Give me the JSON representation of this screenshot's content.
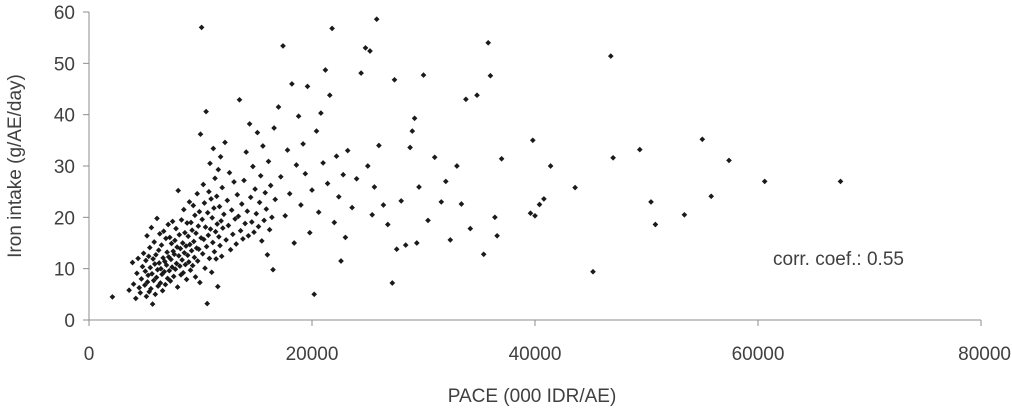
{
  "chart_data": {
    "type": "scatter",
    "title": "",
    "xlabel": "PACE (000 IDR/AE)",
    "ylabel": "Iron intake (g/AE/day)",
    "xlim": [
      0,
      80000
    ],
    "ylim": [
      0,
      60
    ],
    "x_ticks": [
      0,
      20000,
      40000,
      60000,
      80000
    ],
    "x_tick_labels": [
      "0",
      "20000",
      "40000",
      "60000",
      "80000"
    ],
    "y_ticks": [
      0,
      10,
      20,
      30,
      40,
      50,
      60
    ],
    "y_tick_labels": [
      "0",
      "10",
      "20",
      "30",
      "40",
      "50",
      "60"
    ],
    "grid": false,
    "legend": "none",
    "point_color": "#1a1a1a",
    "annotation": "corr. coef.: 0.55",
    "series": [
      {
        "points": [
          [
            2100,
            4.5
          ],
          [
            3600,
            5.8
          ],
          [
            3900,
            11.2
          ],
          [
            4000,
            7.0
          ],
          [
            4200,
            4.2
          ],
          [
            4300,
            9.1
          ],
          [
            4400,
            12.0
          ],
          [
            4500,
            6.3
          ],
          [
            4600,
            5.3
          ],
          [
            4700,
            8.0
          ],
          [
            4800,
            10.4
          ],
          [
            4900,
            13.0
          ],
          [
            5000,
            6.8
          ],
          [
            5050,
            9.5
          ],
          [
            5100,
            11.6
          ],
          [
            5150,
            4.6
          ],
          [
            5200,
            16.4
          ],
          [
            5250,
            7.4
          ],
          [
            5300,
            8.7
          ],
          [
            5350,
            12.4
          ],
          [
            5400,
            5.5
          ],
          [
            5450,
            14.1
          ],
          [
            5500,
            10.2
          ],
          [
            5550,
            6.1
          ],
          [
            5600,
            18.0
          ],
          [
            5650,
            9.0
          ],
          [
            5700,
            3.1
          ],
          [
            5750,
            11.9
          ],
          [
            5800,
            7.7
          ],
          [
            5850,
            15.2
          ],
          [
            5900,
            10.9
          ],
          [
            5950,
            5.0
          ],
          [
            6000,
            12.7
          ],
          [
            6050,
            8.3
          ],
          [
            6100,
            19.8
          ],
          [
            6150,
            9.8
          ],
          [
            6200,
            6.6
          ],
          [
            6250,
            13.6
          ],
          [
            6300,
            11.1
          ],
          [
            6350,
            16.8
          ],
          [
            6400,
            7.2
          ],
          [
            6450,
            10.0
          ],
          [
            6500,
            14.6
          ],
          [
            6550,
            8.9
          ],
          [
            6600,
            5.7
          ],
          [
            6650,
            12.1
          ],
          [
            6700,
            17.3
          ],
          [
            6750,
            9.4
          ],
          [
            6800,
            11.4
          ],
          [
            6850,
            6.9
          ],
          [
            6900,
            15.9
          ],
          [
            6950,
            10.7
          ],
          [
            7000,
            13.2
          ],
          [
            7050,
            8.1
          ],
          [
            7100,
            18.6
          ],
          [
            7150,
            12.3
          ],
          [
            7200,
            9.6
          ],
          [
            7250,
            16.1
          ],
          [
            7300,
            7.6
          ],
          [
            7350,
            11.8
          ],
          [
            7400,
            14.9
          ],
          [
            7450,
            10.3
          ],
          [
            7500,
            19.2
          ],
          [
            7550,
            13.4
          ],
          [
            7600,
            8.5
          ],
          [
            7650,
            12.8
          ],
          [
            7700,
            15.5
          ],
          [
            7750,
            9.9
          ],
          [
            7800,
            17.8
          ],
          [
            7850,
            11.0
          ],
          [
            7900,
            14.2
          ],
          [
            7950,
            6.4
          ],
          [
            8000,
            25.2
          ],
          [
            8050,
            12.5
          ],
          [
            8100,
            16.6
          ],
          [
            8150,
            10.5
          ],
          [
            8200,
            13.9
          ],
          [
            8250,
            8.8
          ],
          [
            8300,
            19.5
          ],
          [
            8350,
            11.7
          ],
          [
            8400,
            15.0
          ],
          [
            8450,
            9.2
          ],
          [
            8500,
            21.5
          ],
          [
            8550,
            13.1
          ],
          [
            8600,
            17.0
          ],
          [
            8650,
            10.8
          ],
          [
            8700,
            14.4
          ],
          [
            8750,
            7.9
          ],
          [
            8800,
            18.9
          ],
          [
            8850,
            12.6
          ],
          [
            8900,
            16.3
          ],
          [
            8950,
            11.3
          ],
          [
            9000,
            23.0
          ],
          [
            9050,
            14.7
          ],
          [
            9100,
            9.7
          ],
          [
            9150,
            19.0
          ],
          [
            9200,
            13.5
          ],
          [
            9250,
            17.5
          ],
          [
            9300,
            10.6
          ],
          [
            9350,
            22.3
          ],
          [
            9400,
            15.3
          ],
          [
            9450,
            12.2
          ],
          [
            9500,
            20.4
          ],
          [
            9550,
            8.4
          ],
          [
            9600,
            16.9
          ],
          [
            9650,
            14.0
          ],
          [
            9700,
            24.6
          ],
          [
            9750,
            11.5
          ],
          [
            9800,
            18.3
          ],
          [
            9850,
            13.8
          ],
          [
            9900,
            21.1
          ],
          [
            9950,
            7.3
          ],
          [
            10000,
            36.2
          ],
          [
            10050,
            16.0
          ],
          [
            10100,
            57.0
          ],
          [
            10150,
            19.6
          ],
          [
            10200,
            12.9
          ],
          [
            10250,
            26.4
          ],
          [
            10300,
            15.7
          ],
          [
            10350,
            22.8
          ],
          [
            10400,
            10.1
          ],
          [
            10450,
            18.1
          ],
          [
            10500,
            40.6
          ],
          [
            10550,
            14.3
          ],
          [
            10600,
            3.2
          ],
          [
            10650,
            20.9
          ],
          [
            10700,
            16.5
          ],
          [
            10750,
            25.0
          ],
          [
            10800,
            12.0
          ],
          [
            10850,
            30.5
          ],
          [
            10900,
            17.7
          ],
          [
            10950,
            23.6
          ],
          [
            11000,
            9.3
          ],
          [
            11050,
            19.9
          ],
          [
            11100,
            15.1
          ],
          [
            11150,
            33.4
          ],
          [
            11200,
            21.8
          ],
          [
            11250,
            13.3
          ],
          [
            11300,
            27.6
          ],
          [
            11350,
            17.2
          ],
          [
            11400,
            11.9
          ],
          [
            11450,
            24.1
          ],
          [
            11500,
            18.7
          ],
          [
            11550,
            6.5
          ],
          [
            11600,
            29.3
          ],
          [
            11650,
            16.2
          ],
          [
            11700,
            22.1
          ],
          [
            11750,
            14.5
          ],
          [
            11800,
            31.8
          ],
          [
            11850,
            19.3
          ],
          [
            11900,
            12.4
          ],
          [
            11950,
            25.8
          ],
          [
            12000,
            17.9
          ],
          [
            12100,
            20.6
          ],
          [
            12200,
            34.6
          ],
          [
            12300,
            15.6
          ],
          [
            12400,
            23.3
          ],
          [
            12500,
            18.4
          ],
          [
            12600,
            28.7
          ],
          [
            12700,
            13.7
          ],
          [
            12800,
            21.4
          ],
          [
            12900,
            16.7
          ],
          [
            13000,
            26.9
          ],
          [
            13100,
            19.7
          ],
          [
            13200,
            14.8
          ],
          [
            13300,
            24.4
          ],
          [
            13400,
            20.2
          ],
          [
            13500,
            42.9
          ],
          [
            13600,
            17.4
          ],
          [
            13700,
            22.6
          ],
          [
            13800,
            15.8
          ],
          [
            13900,
            27.2
          ],
          [
            14000,
            18.8
          ],
          [
            14100,
            32.7
          ],
          [
            14200,
            21.2
          ],
          [
            14300,
            16.4
          ],
          [
            14400,
            38.2
          ],
          [
            14500,
            23.9
          ],
          [
            14600,
            19.1
          ],
          [
            14700,
            29.9
          ],
          [
            14800,
            17.1
          ],
          [
            14900,
            25.5
          ],
          [
            15000,
            20.7
          ],
          [
            15100,
            36.5
          ],
          [
            15200,
            18.2
          ],
          [
            15300,
            22.9
          ],
          [
            15400,
            28.1
          ],
          [
            15500,
            15.4
          ],
          [
            15600,
            33.9
          ],
          [
            15700,
            19.4
          ],
          [
            15800,
            24.8
          ],
          [
            15900,
            21.6
          ],
          [
            16000,
            12.7
          ],
          [
            16100,
            30.9
          ],
          [
            16200,
            17.6
          ],
          [
            16300,
            26.2
          ],
          [
            16400,
            20.0
          ],
          [
            16500,
            9.8
          ],
          [
            16600,
            37.4
          ],
          [
            16700,
            23.5
          ],
          [
            17000,
            41.5
          ],
          [
            17200,
            27.9
          ],
          [
            17400,
            53.4
          ],
          [
            17600,
            20.3
          ],
          [
            17800,
            33.1
          ],
          [
            18000,
            24.6
          ],
          [
            18200,
            46.0
          ],
          [
            18400,
            15.0
          ],
          [
            18600,
            30.2
          ],
          [
            18800,
            39.7
          ],
          [
            19000,
            22.4
          ],
          [
            19200,
            34.3
          ],
          [
            19400,
            28.5
          ],
          [
            19600,
            45.5
          ],
          [
            19800,
            17.0
          ],
          [
            20000,
            25.3
          ],
          [
            20200,
            5.0
          ],
          [
            20400,
            36.8
          ],
          [
            20600,
            21.0
          ],
          [
            20800,
            40.3
          ],
          [
            21000,
            30.6
          ],
          [
            21200,
            48.7
          ],
          [
            21400,
            26.6
          ],
          [
            21600,
            43.8
          ],
          [
            21800,
            56.8
          ],
          [
            22000,
            19.0
          ],
          [
            22200,
            31.9
          ],
          [
            22400,
            24.0
          ],
          [
            22600,
            11.5
          ],
          [
            22800,
            28.3
          ],
          [
            23000,
            16.1
          ],
          [
            23200,
            33.0
          ],
          [
            23600,
            21.9
          ],
          [
            24000,
            27.5
          ],
          [
            24400,
            48.1
          ],
          [
            24800,
            53.0
          ],
          [
            25000,
            30.0
          ],
          [
            25200,
            52.4
          ],
          [
            25400,
            20.5
          ],
          [
            25600,
            25.9
          ],
          [
            25800,
            58.6
          ],
          [
            26000,
            34.0
          ],
          [
            26400,
            22.4
          ],
          [
            26800,
            18.6
          ],
          [
            27200,
            7.2
          ],
          [
            27400,
            46.8
          ],
          [
            27600,
            13.8
          ],
          [
            28000,
            23.2
          ],
          [
            28400,
            14.6
          ],
          [
            28800,
            33.6
          ],
          [
            29000,
            36.8
          ],
          [
            29200,
            39.3
          ],
          [
            29400,
            15.0
          ],
          [
            29600,
            25.9
          ],
          [
            30000,
            47.7
          ],
          [
            30400,
            19.4
          ],
          [
            31000,
            31.7
          ],
          [
            31600,
            23.0
          ],
          [
            32000,
            27.0
          ],
          [
            32400,
            15.6
          ],
          [
            33000,
            30.0
          ],
          [
            33400,
            22.6
          ],
          [
            33800,
            43.0
          ],
          [
            34200,
            17.8
          ],
          [
            34800,
            43.8
          ],
          [
            35400,
            12.8
          ],
          [
            35800,
            54.0
          ],
          [
            36000,
            47.6
          ],
          [
            36400,
            20.0
          ],
          [
            36600,
            16.4
          ],
          [
            37000,
            31.4
          ],
          [
            39600,
            20.8
          ],
          [
            39800,
            35.0
          ],
          [
            40000,
            20.3
          ],
          [
            40400,
            22.5
          ],
          [
            40800,
            23.6
          ],
          [
            41400,
            30.0
          ],
          [
            43600,
            25.8
          ],
          [
            45200,
            9.4
          ],
          [
            46800,
            51.4
          ],
          [
            47000,
            31.6
          ],
          [
            49400,
            33.2
          ],
          [
            50400,
            23.0
          ],
          [
            50800,
            18.6
          ],
          [
            53400,
            20.5
          ],
          [
            55000,
            35.2
          ],
          [
            55800,
            24.1
          ],
          [
            57400,
            31.1
          ],
          [
            60600,
            27.0
          ],
          [
            67400,
            27.0
          ]
        ]
      }
    ]
  }
}
